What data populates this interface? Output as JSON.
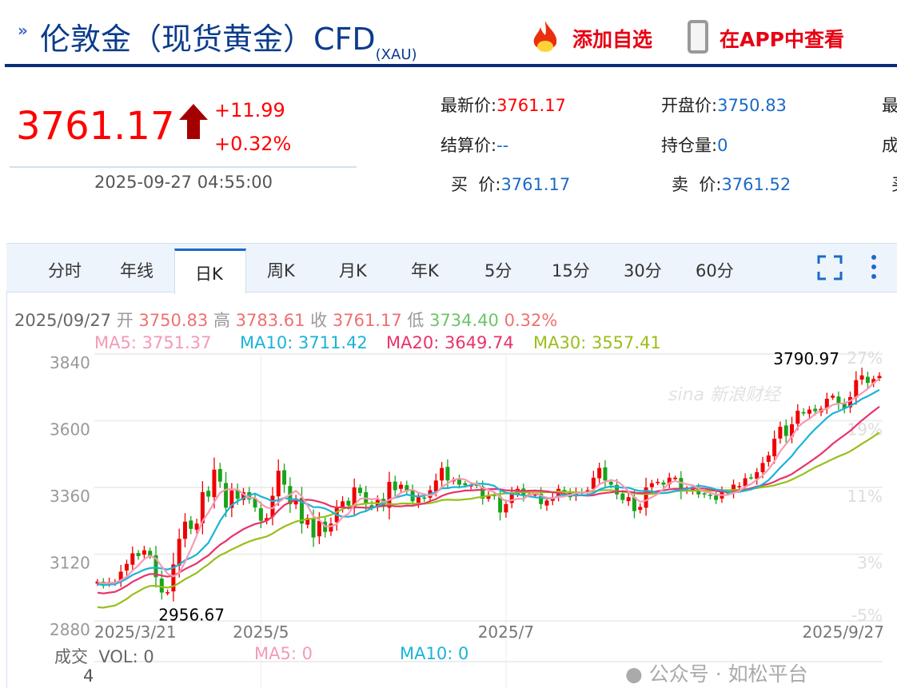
{
  "header": {
    "title": "伦敦金（现货黄金）CFD",
    "symbol": "(XAU)",
    "add_watch": "添加自选",
    "view_app": "在APP中查看"
  },
  "quote": {
    "price": "3761.17",
    "change": "+11.99",
    "change_pct": "+0.32%",
    "time": "2025-09-27 04:55:00",
    "fields": [
      {
        "label": "最新价:",
        "value": "3761.17",
        "color": "red"
      },
      {
        "label": "开盘价:",
        "value": "3750.83",
        "color": "blue"
      },
      {
        "label": "最",
        "value": ""
      },
      {
        "label": "结算价:",
        "value": "--",
        "color": "blue"
      },
      {
        "label": "持仓量:",
        "value": "0",
        "color": "blue"
      },
      {
        "label": "成",
        "value": ""
      },
      {
        "label": "买  价:",
        "value": "3761.17",
        "color": "blue"
      },
      {
        "label": "卖  价:",
        "value": "3761.52",
        "color": "blue"
      },
      {
        "label": "买",
        "value": ""
      }
    ]
  },
  "tabs": [
    "分时",
    "年线",
    "日K",
    "周K",
    "月K",
    "年K",
    "5分",
    "15分",
    "30分",
    "60分"
  ],
  "active_tab": "日K",
  "ohlc": {
    "date": "2025/09/27",
    "open_l": "开",
    "open": "3750.83",
    "high_l": "高",
    "high": "3783.61",
    "close_l": "收",
    "close": "3761.17",
    "low_l": "低",
    "low": "3734.40",
    "pct": "0.32%"
  },
  "ma": {
    "ma5": "MA5: 3751.37",
    "ma10": "MA10: 3711.42",
    "ma20": "MA20: 3649.74",
    "ma30": "MA30: 3557.41"
  },
  "volume": {
    "label": "成交",
    "vol": "VOL: 0",
    "ma5": "MA5: 0",
    "ma10": "MA10: 0",
    "axis": "4"
  },
  "watermark": {
    "sina": "sina 新浪财经",
    "wechat": "公众号 · 如松平台"
  },
  "colors": {
    "up": "#f00000",
    "down": "#1aa31a",
    "ma5": "#f59ab5",
    "ma10": "#1ab4d8",
    "ma20": "#e8336a",
    "ma30": "#98bf1a"
  },
  "chart_data": {
    "type": "candlestick",
    "ylim": [
      2880,
      3840
    ],
    "y_ticks": [
      "3840",
      "3600",
      "3360",
      "3120",
      "2880"
    ],
    "y_pct_ticks": [
      "27%",
      "19%",
      "11%",
      "3%",
      "-5%"
    ],
    "x_ticks": [
      "2025/3/21",
      "2025/5",
      "2025/7",
      "2025/9/27"
    ],
    "x_tick_index": [
      0,
      28,
      70,
      134
    ],
    "max_label": "3790.97",
    "min_label": "2956.67",
    "max_index": 131,
    "min_index": 11,
    "closes": [
      3022,
      3012,
      3020,
      3020,
      3057,
      3085,
      3123,
      3113,
      3134,
      3114,
      3037,
      2982,
      2983,
      3083,
      3175,
      3237,
      3211,
      3230,
      3343,
      3327,
      3424,
      3381,
      3287,
      3349,
      3319,
      3343,
      3317,
      3288,
      3240,
      3250,
      3330,
      3420,
      3370,
      3300,
      3320,
      3230,
      3250,
      3180,
      3240,
      3200,
      3230,
      3290,
      3310,
      3295,
      3360,
      3340,
      3300,
      3290,
      3315,
      3290,
      3380,
      3350,
      3370,
      3350,
      3310,
      3325,
      3320,
      3350,
      3385,
      3430,
      3385,
      3388,
      3370,
      3368,
      3368,
      3368,
      3320,
      3330,
      3330,
      3270,
      3300,
      3340,
      3355,
      3330,
      3335,
      3335,
      3300,
      3313,
      3325,
      3355,
      3345,
      3325,
      3345,
      3340,
      3350,
      3395,
      3430,
      3385,
      3370,
      3335,
      3315,
      3325,
      3275,
      3290,
      3360,
      3375,
      3380,
      3370,
      3395,
      3395,
      3345,
      3350,
      3355,
      3335,
      3337,
      3330,
      3315,
      3345,
      3340,
      3370,
      3365,
      3393,
      3395,
      3415,
      3448,
      3475,
      3535,
      3578,
      3545,
      3587,
      3636,
      3626,
      3640,
      3634,
      3643,
      3679,
      3690,
      3660,
      3643,
      3685,
      3746,
      3763,
      3736,
      3750,
      3761
    ]
  }
}
